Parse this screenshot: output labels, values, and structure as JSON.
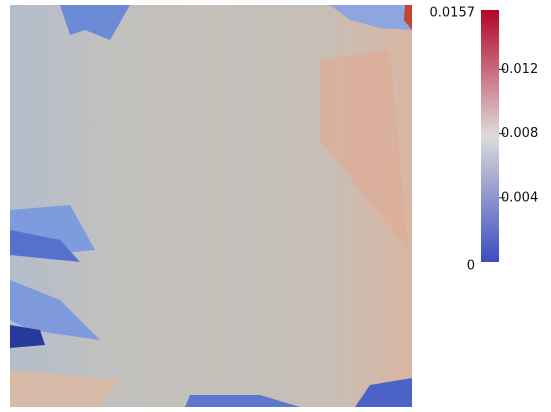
{
  "chart_data": {
    "type": "colorbar",
    "ylim": [
      0,
      0.0157
    ],
    "yticks": [
      0,
      0.004,
      0.008,
      0.012,
      0.0157
    ],
    "colormap": [
      "#3b4cc0",
      "#dddcdb",
      "#b40426"
    ]
  }
}
